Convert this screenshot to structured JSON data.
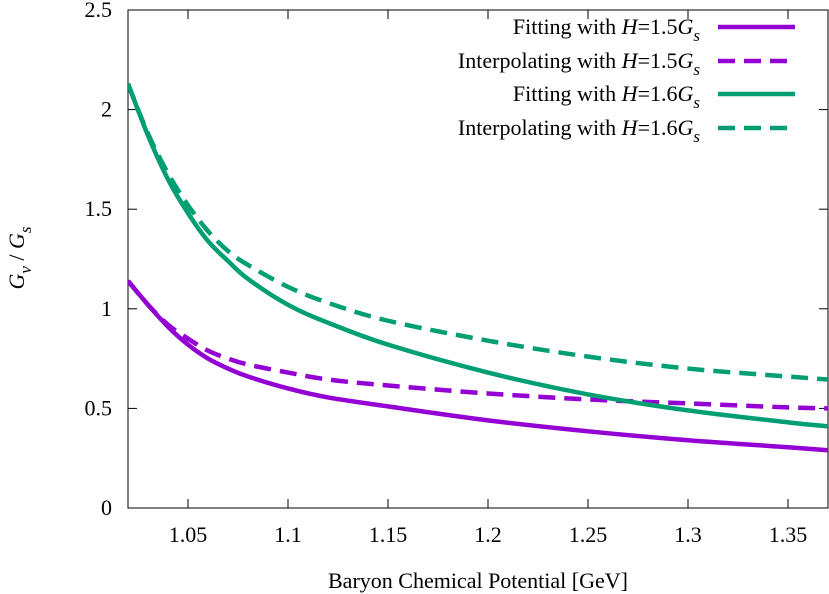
{
  "chart_data": {
    "type": "line",
    "title": "",
    "xlabel": "Baryon Chemical Potential [GeV]",
    "ylabel": "Gv / Gs",
    "xlim": [
      1.02,
      1.37
    ],
    "ylim": [
      0,
      2.5
    ],
    "x_ticks": [
      1.05,
      1.1,
      1.15,
      1.2,
      1.25,
      1.3,
      1.35
    ],
    "x_tick_labels": [
      "1.05",
      "1.1",
      "1.15",
      "1.2",
      "1.25",
      "1.3",
      "1.35"
    ],
    "y_ticks": [
      0,
      0.5,
      1,
      1.5,
      2,
      2.5
    ],
    "y_tick_labels": [
      "0",
      "0.5",
      "1",
      "1.5",
      "2",
      "2.5"
    ],
    "grid": false,
    "legend_position": "top-right",
    "colors": {
      "purple": "#9400d3",
      "green": "#009e73"
    },
    "series": [
      {
        "name": "Fitting with H=1.5Gs",
        "color": "#9400d3",
        "dash": "solid",
        "x": [
          1.02,
          1.03,
          1.04,
          1.05,
          1.06,
          1.07,
          1.08,
          1.1,
          1.12,
          1.15,
          1.2,
          1.25,
          1.3,
          1.35,
          1.37
        ],
        "y": [
          1.14,
          1.02,
          0.91,
          0.82,
          0.75,
          0.7,
          0.66,
          0.6,
          0.555,
          0.51,
          0.44,
          0.385,
          0.34,
          0.305,
          0.29
        ]
      },
      {
        "name": "Interpolating with H=1.5Gs",
        "color": "#9400d3",
        "dash": "dashed",
        "x": [
          1.02,
          1.03,
          1.04,
          1.05,
          1.06,
          1.07,
          1.08,
          1.1,
          1.12,
          1.15,
          1.2,
          1.25,
          1.3,
          1.35,
          1.37
        ],
        "y": [
          1.14,
          1.02,
          0.92,
          0.85,
          0.79,
          0.75,
          0.72,
          0.68,
          0.645,
          0.615,
          0.575,
          0.545,
          0.525,
          0.505,
          0.5
        ]
      },
      {
        "name": "Fitting with H=1.6Gs",
        "color": "#009e73",
        "dash": "solid",
        "x": [
          1.02,
          1.03,
          1.04,
          1.05,
          1.06,
          1.07,
          1.08,
          1.1,
          1.12,
          1.15,
          1.2,
          1.25,
          1.3,
          1.35,
          1.37
        ],
        "y": [
          2.13,
          1.87,
          1.65,
          1.48,
          1.34,
          1.24,
          1.15,
          1.02,
          0.93,
          0.82,
          0.68,
          0.57,
          0.49,
          0.43,
          0.41
        ]
      },
      {
        "name": "Interpolating with H=1.6Gs",
        "color": "#009e73",
        "dash": "dashed",
        "x": [
          1.02,
          1.03,
          1.04,
          1.05,
          1.06,
          1.07,
          1.08,
          1.1,
          1.12,
          1.15,
          1.2,
          1.25,
          1.3,
          1.35,
          1.37
        ],
        "y": [
          2.13,
          1.88,
          1.68,
          1.52,
          1.39,
          1.29,
          1.22,
          1.11,
          1.03,
          0.94,
          0.84,
          0.76,
          0.7,
          0.66,
          0.645
        ]
      }
    ],
    "legend": [
      {
        "prefix": "Fitting with ",
        "var": "H",
        "mid": "=1.5",
        "sym": "G",
        "sub": "s"
      },
      {
        "prefix": "Interpolating with ",
        "var": "H",
        "mid": "=1.5",
        "sym": "G",
        "sub": "s"
      },
      {
        "prefix": "Fitting with ",
        "var": "H",
        "mid": "=1.6",
        "sym": "G",
        "sub": "s"
      },
      {
        "prefix": "Interpolating with ",
        "var": "H",
        "mid": "=1.6",
        "sym": "G",
        "sub": "s"
      }
    ],
    "ylabel_parts": {
      "num": "G",
      "num_sub": "v",
      "sep": " / ",
      "den": "G",
      "den_sub": "s"
    }
  }
}
